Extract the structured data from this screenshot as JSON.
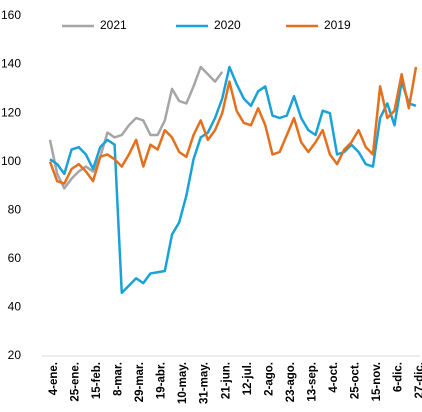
{
  "chart_data": {
    "type": "line",
    "categories": [
      "4-ene.",
      null,
      null,
      "25-ene.",
      null,
      null,
      "15-feb.",
      null,
      null,
      "8-mar.",
      null,
      null,
      "29-mar.",
      null,
      null,
      "19-abr.",
      null,
      null,
      "10-may.",
      null,
      null,
      "31-may.",
      null,
      null,
      "21-jun.",
      null,
      null,
      "12-jul.",
      null,
      null,
      "2-ago.",
      null,
      null,
      "23-ago.",
      null,
      null,
      "13-sep.",
      null,
      null,
      "4-oct.",
      null,
      null,
      "25-oct.",
      null,
      null,
      "15-nov.",
      null,
      null,
      "6-dic.",
      null,
      null,
      "27-dic."
    ],
    "series": [
      {
        "name": "2021",
        "color": "#a5a5a5",
        "values": [
          109,
          95,
          89,
          93,
          96,
          98,
          96,
          102,
          112,
          110,
          111,
          115,
          118,
          117,
          111,
          111,
          117,
          130,
          125,
          124,
          131,
          139,
          136,
          133,
          137,
          null,
          null,
          null,
          null,
          null,
          null,
          null,
          null,
          null,
          null,
          null,
          null,
          null,
          null,
          null,
          null,
          null,
          null,
          null,
          null,
          null,
          null,
          null,
          null,
          null,
          null,
          null
        ]
      },
      {
        "name": "2020",
        "color": "#19a2d8",
        "values": [
          101,
          99,
          95,
          105,
          106,
          103,
          97,
          106,
          109,
          107,
          46,
          49,
          52,
          50,
          54,
          54.5,
          55,
          70,
          75,
          86,
          101,
          110,
          112,
          118,
          126,
          139,
          132,
          126,
          123,
          129,
          131,
          119,
          118,
          119,
          127,
          118,
          113,
          111,
          121,
          120,
          103,
          104,
          107,
          104,
          99,
          98,
          118,
          124,
          115,
          133,
          124,
          123
        ]
      },
      {
        "name": "2019",
        "color": "#e4701e",
        "values": [
          100,
          92,
          91,
          97,
          99,
          96,
          92,
          102,
          103,
          101,
          98,
          103,
          109,
          98,
          107,
          105,
          113,
          110,
          104,
          102,
          111,
          117,
          109,
          113,
          120,
          133,
          121,
          116,
          115,
          122,
          115,
          103,
          104,
          111,
          118,
          108,
          104,
          108,
          113,
          103,
          99,
          105,
          108,
          113,
          106,
          103,
          131,
          118,
          121,
          136,
          122,
          139
        ]
      }
    ],
    "ylim": [
      20,
      160
    ],
    "yticks": [
      20,
      40,
      60,
      80,
      100,
      120,
      140,
      160
    ]
  }
}
